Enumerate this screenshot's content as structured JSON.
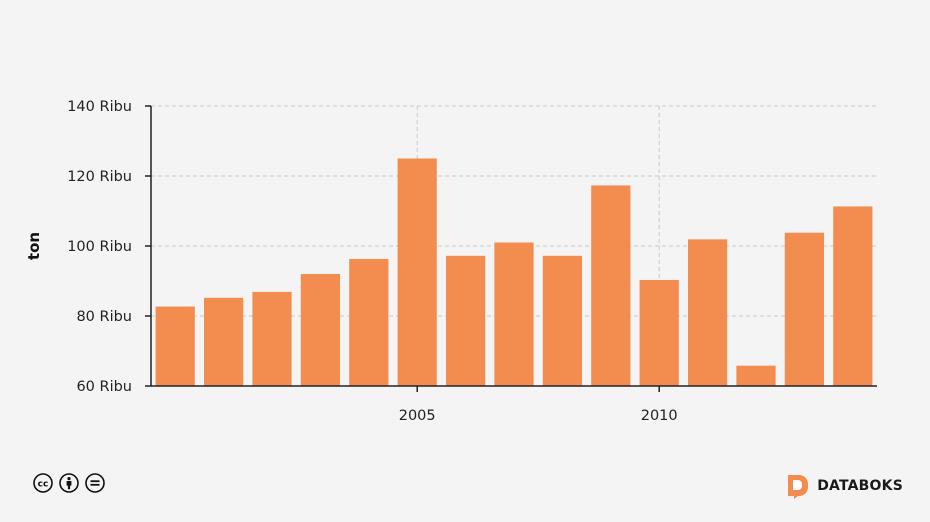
{
  "chart_data": {
    "type": "bar",
    "title": "",
    "xlabel": "",
    "ylabel": "ton",
    "x": [
      2000,
      2001,
      2002,
      2003,
      2004,
      2005,
      2006,
      2007,
      2008,
      2009,
      2010,
      2011,
      2012,
      2013,
      2014
    ],
    "values": [
      82700,
      85200,
      86900,
      92000,
      96300,
      125000,
      97200,
      101000,
      97200,
      117300,
      90300,
      101900,
      65800,
      103800,
      111300
    ],
    "xticks": [
      2005,
      2010
    ],
    "xtick_labels": [
      "2005",
      "2010"
    ],
    "yticks": [
      60000,
      80000,
      100000,
      120000,
      140000
    ],
    "ytick_labels": [
      "60 Ribu",
      "80 Ribu",
      "100 Ribu",
      "120 Ribu",
      "140 Ribu"
    ],
    "ylim": [
      60000,
      140000
    ],
    "bar_color": "#f28c4f",
    "grid": true
  },
  "footer": {
    "brand_name": "DATABOKS",
    "brand_color": "#f28c4f",
    "license_icons": [
      "cc-icon",
      "by-icon",
      "nd-icon"
    ]
  }
}
